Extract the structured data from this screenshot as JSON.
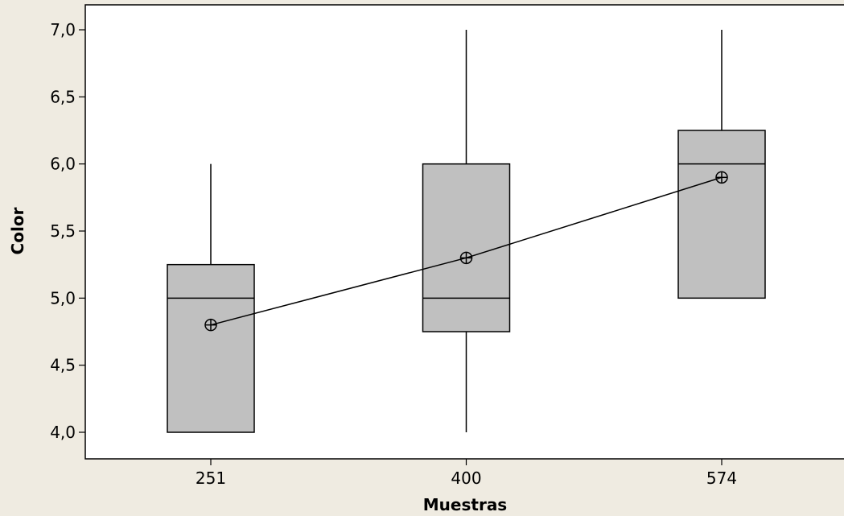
{
  "chart_data": {
    "type": "boxplot",
    "title": "",
    "xlabel": "Muestras",
    "ylabel": "Color",
    "ylim": [
      3.8,
      7.2
    ],
    "yticks": [
      {
        "value": 4.0,
        "label": "4,0"
      },
      {
        "value": 4.5,
        "label": "4,5"
      },
      {
        "value": 5.0,
        "label": "5,0"
      },
      {
        "value": 5.5,
        "label": "5,5"
      },
      {
        "value": 6.0,
        "label": "6,0"
      },
      {
        "value": 6.5,
        "label": "6,5"
      },
      {
        "value": 7.0,
        "label": "7,0"
      }
    ],
    "categories": [
      "251",
      "400",
      "574"
    ],
    "boxes": [
      {
        "category": "251",
        "whisker_low": 4.0,
        "q1": 4.0,
        "median": 5.0,
        "q3": 5.25,
        "whisker_high": 6.0,
        "mean": 4.8
      },
      {
        "category": "400",
        "whisker_low": 4.0,
        "q1": 4.75,
        "median": 5.0,
        "q3": 6.0,
        "whisker_high": 7.0,
        "mean": 5.3
      },
      {
        "category": "574",
        "whisker_low": 5.0,
        "q1": 5.0,
        "median": 6.0,
        "q3": 6.25,
        "whisker_high": 7.0,
        "mean": 5.9
      }
    ],
    "mean_line": true,
    "grid": false,
    "colors": {
      "background": "#EFEBE1",
      "plot_area": "#FFFFFF",
      "box_fill": "#C0C0C0",
      "stroke": "#000000"
    }
  }
}
